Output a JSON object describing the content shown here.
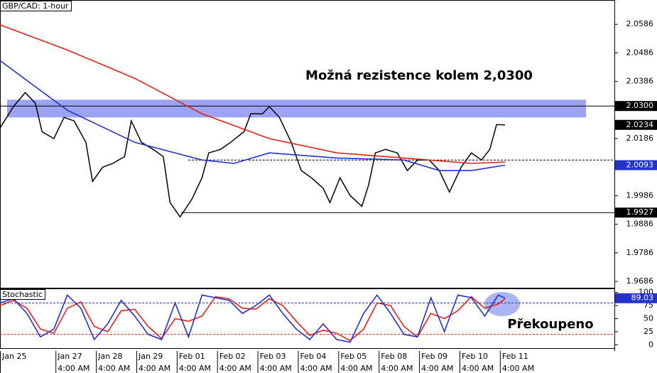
{
  "chart_data": [
    {
      "type": "line",
      "title": "GBP/CAD: 1-hour",
      "annotation": "Možná rezistence kolem 2,0300",
      "xlim": [
        0,
        365
      ],
      "ylim": [
        1.9664,
        2.0671
      ],
      "yticks": [
        2.0586,
        2.0486,
        2.0386,
        2.0186,
        1.9986,
        1.9886,
        1.9786,
        1.9686
      ],
      "band": [
        2.026,
        2.0322
      ],
      "band_color": "#9ba3f2",
      "dashed_levels": [
        2.0111
      ],
      "price_labels": [
        {
          "value": 2.03,
          "label": "2.0300",
          "color": "#000000",
          "line": true
        },
        {
          "value": 2.0234,
          "color": "#000000",
          "line": false
        },
        {
          "value": 2.0093,
          "color": "#2233cc",
          "line": false
        },
        {
          "value": 1.9927,
          "color": "#000000",
          "line": true
        }
      ],
      "series": [
        {
          "color": "#000000",
          "x": [
            0,
            8,
            15,
            21,
            25,
            32,
            38,
            44,
            51,
            55,
            61,
            67,
            74,
            78,
            84,
            91,
            97,
            101,
            107,
            114,
            120,
            124,
            131,
            137,
            145,
            149,
            156,
            160,
            166,
            173,
            179,
            185,
            192,
            196,
            202,
            208,
            215,
            219,
            223,
            229,
            236,
            242,
            248,
            255,
            261,
            267,
            274,
            280,
            286,
            291,
            295,
            300
          ],
          "values": [
            2.0223,
            2.0298,
            2.0347,
            2.031,
            2.021,
            2.0186,
            2.026,
            2.0248,
            2.0173,
            2.0036,
            2.0086,
            2.0099,
            2.0123,
            2.0248,
            2.0173,
            2.0148,
            2.0123,
            1.9962,
            1.9912,
            1.9974,
            2.0049,
            2.0136,
            2.0148,
            2.0173,
            2.021,
            2.0273,
            2.0273,
            2.0298,
            2.026,
            2.0173,
            2.0074,
            2.0049,
            2.0012,
            1.9962,
            2.0049,
            1.9987,
            1.9949,
            2.0024,
            2.0136,
            2.0148,
            2.0136,
            2.0074,
            2.0111,
            2.0111,
            2.0074,
            1.9999,
            2.0086,
            2.0136,
            2.0111,
            2.0148,
            2.0235,
            2.0234
          ]
        },
        {
          "color": "#e8201a",
          "x": [
            0,
            40,
            80,
            120,
            160,
            200,
            240,
            280,
            300
          ],
          "values": [
            2.0584,
            2.0496,
            2.0397,
            2.0273,
            2.0186,
            2.0136,
            2.0118,
            2.0099,
            2.0104
          ]
        },
        {
          "color": "#2233cc",
          "x": [
            0,
            40,
            80,
            120,
            139,
            160,
            200,
            240,
            261,
            280,
            300
          ],
          "values": [
            2.0459,
            2.0285,
            2.0173,
            2.0111,
            2.0099,
            2.0136,
            2.0118,
            2.0111,
            2.0074,
            2.0074,
            2.0093
          ]
        }
      ]
    },
    {
      "type": "line",
      "title": "Stochastic",
      "annotation": "Překoupeno",
      "xlim": [
        0,
        365
      ],
      "ylim": [
        -6.4,
        107.7
      ],
      "yticks": [
        100,
        75,
        50,
        25,
        0
      ],
      "dashed_levels_colored": [
        {
          "value": 80,
          "color": "#2233cc"
        },
        {
          "value": 20,
          "color": "#e8201a"
        }
      ],
      "price_labels": [
        {
          "value": 89.03,
          "color": "#2233cc",
          "line": false
        }
      ],
      "xticks": [
        {
          "value": 0,
          "label": "Jan 25"
        },
        {
          "value": 33,
          "label": "Jan 27"
        },
        {
          "value": 57,
          "label": "Jan 28"
        },
        {
          "value": 81,
          "label": "Jan 29"
        },
        {
          "value": 105,
          "label": "Feb 01"
        },
        {
          "value": 129,
          "label": "Feb 02"
        },
        {
          "value": 153,
          "label": "Feb 03"
        },
        {
          "value": 177,
          "label": "Feb 04"
        },
        {
          "value": 201,
          "label": "Feb 05"
        },
        {
          "value": 225,
          "label": "Feb 08"
        },
        {
          "value": 249,
          "label": "Feb 09"
        },
        {
          "value": 273,
          "label": "Feb 10"
        },
        {
          "value": 297,
          "label": "Feb 11"
        }
      ],
      "time_labels": [
        "4:00 AM",
        "4:00 AM",
        "4:00 AM",
        "4:00 AM",
        "4:00 AM",
        "4:00 AM",
        "4:00 AM",
        "4:00 AM",
        "4:00 AM",
        "4:00 AM",
        "4:00 AM",
        "4:00 AM"
      ],
      "series": [
        {
          "color": "#e8201a",
          "x": [
            0,
            8,
            16,
            24,
            32,
            40,
            48,
            56,
            64,
            72,
            80,
            88,
            96,
            104,
            112,
            120,
            128,
            136,
            144,
            152,
            160,
            168,
            176,
            184,
            192,
            200,
            208,
            216,
            224,
            232,
            240,
            248,
            256,
            264,
            272,
            280,
            288,
            296,
            300
          ],
          "values": [
            75,
            85,
            70,
            30,
            22,
            70,
            82,
            35,
            25,
            65,
            68,
            35,
            12,
            50,
            45,
            55,
            92,
            88,
            70,
            68,
            88,
            75,
            45,
            18,
            28,
            22,
            8,
            30,
            80,
            75,
            35,
            15,
            60,
            50,
            65,
            92,
            70,
            78,
            88
          ]
        },
        {
          "color": "#2233cc",
          "x": [
            0,
            8,
            16,
            24,
            32,
            40,
            48,
            56,
            64,
            72,
            80,
            88,
            96,
            104,
            112,
            120,
            128,
            136,
            144,
            152,
            160,
            168,
            176,
            184,
            192,
            200,
            208,
            216,
            224,
            232,
            240,
            248,
            256,
            264,
            272,
            280,
            288,
            296,
            300
          ],
          "values": [
            80,
            88,
            60,
            15,
            30,
            95,
            70,
            10,
            40,
            85,
            55,
            20,
            10,
            80,
            15,
            95,
            90,
            85,
            60,
            75,
            95,
            60,
            30,
            10,
            40,
            10,
            5,
            60,
            95,
            60,
            20,
            15,
            90,
            25,
            95,
            90,
            55,
            95,
            89.03
          ]
        }
      ]
    }
  ]
}
